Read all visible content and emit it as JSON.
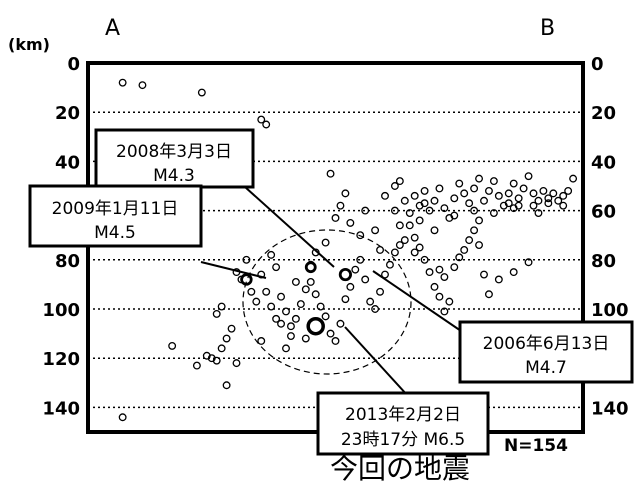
{
  "chart_data": {
    "type": "scatter",
    "title": "",
    "xlabel": "",
    "ylabel": "(km)",
    "y_unit": "(km)",
    "endpoint_left": "A",
    "endpoint_right": "B",
    "ylim": [
      0,
      150
    ],
    "y_inverted": true,
    "yticks": [
      "0",
      "20",
      "40",
      "60",
      "80",
      "100",
      "120",
      "140"
    ],
    "grid": "horizontal dotted",
    "count_label": "N=154",
    "caption": "今回の地震",
    "points": [
      {
        "x": 0.07,
        "y": 8
      },
      {
        "x": 0.11,
        "y": 9
      },
      {
        "x": 0.23,
        "y": 12
      },
      {
        "x": 0.35,
        "y": 23
      },
      {
        "x": 0.36,
        "y": 25
      },
      {
        "x": 0.07,
        "y": 144
      },
      {
        "x": 0.17,
        "y": 115
      },
      {
        "x": 0.22,
        "y": 123
      },
      {
        "x": 0.24,
        "y": 119
      },
      {
        "x": 0.25,
        "y": 120
      },
      {
        "x": 0.26,
        "y": 121
      },
      {
        "x": 0.27,
        "y": 116
      },
      {
        "x": 0.28,
        "y": 112
      },
      {
        "x": 0.29,
        "y": 108
      },
      {
        "x": 0.26,
        "y": 102
      },
      {
        "x": 0.28,
        "y": 131
      },
      {
        "x": 0.3,
        "y": 122
      },
      {
        "x": 0.27,
        "y": 99
      },
      {
        "x": 0.3,
        "y": 85
      },
      {
        "x": 0.31,
        "y": 88
      },
      {
        "x": 0.32,
        "y": 80
      },
      {
        "x": 0.35,
        "y": 86
      },
      {
        "x": 0.36,
        "y": 93
      },
      {
        "x": 0.37,
        "y": 78
      },
      {
        "x": 0.38,
        "y": 83
      },
      {
        "x": 0.39,
        "y": 95
      },
      {
        "x": 0.4,
        "y": 101
      },
      {
        "x": 0.41,
        "y": 107
      },
      {
        "x": 0.42,
        "y": 104
      },
      {
        "x": 0.43,
        "y": 98
      },
      {
        "x": 0.44,
        "y": 92
      },
      {
        "x": 0.45,
        "y": 89
      },
      {
        "x": 0.46,
        "y": 94
      },
      {
        "x": 0.47,
        "y": 99
      },
      {
        "x": 0.48,
        "y": 103
      },
      {
        "x": 0.49,
        "y": 110
      },
      {
        "x": 0.5,
        "y": 113
      },
      {
        "x": 0.51,
        "y": 106
      },
      {
        "x": 0.52,
        "y": 96
      },
      {
        "x": 0.53,
        "y": 91
      },
      {
        "x": 0.54,
        "y": 84
      },
      {
        "x": 0.55,
        "y": 80
      },
      {
        "x": 0.56,
        "y": 88
      },
      {
        "x": 0.57,
        "y": 97
      },
      {
        "x": 0.58,
        "y": 100
      },
      {
        "x": 0.59,
        "y": 93
      },
      {
        "x": 0.6,
        "y": 86
      },
      {
        "x": 0.61,
        "y": 82
      },
      {
        "x": 0.62,
        "y": 77
      },
      {
        "x": 0.46,
        "y": 77
      },
      {
        "x": 0.48,
        "y": 73
      },
      {
        "x": 0.5,
        "y": 63
      },
      {
        "x": 0.53,
        "y": 65
      },
      {
        "x": 0.55,
        "y": 70
      },
      {
        "x": 0.58,
        "y": 68
      },
      {
        "x": 0.38,
        "y": 104
      },
      {
        "x": 0.39,
        "y": 106
      },
      {
        "x": 0.41,
        "y": 111
      },
      {
        "x": 0.44,
        "y": 112
      },
      {
        "x": 0.35,
        "y": 113
      },
      {
        "x": 0.37,
        "y": 99
      },
      {
        "x": 0.33,
        "y": 93
      },
      {
        "x": 0.34,
        "y": 97
      },
      {
        "x": 0.49,
        "y": 45
      },
      {
        "x": 0.51,
        "y": 58
      },
      {
        "x": 0.52,
        "y": 53
      },
      {
        "x": 0.56,
        "y": 60
      },
      {
        "x": 0.6,
        "y": 54
      },
      {
        "x": 0.62,
        "y": 60
      },
      {
        "x": 0.63,
        "y": 66
      },
      {
        "x": 0.64,
        "y": 72
      },
      {
        "x": 0.65,
        "y": 66
      },
      {
        "x": 0.66,
        "y": 71
      },
      {
        "x": 0.67,
        "y": 75
      },
      {
        "x": 0.68,
        "y": 80
      },
      {
        "x": 0.69,
        "y": 85
      },
      {
        "x": 0.7,
        "y": 91
      },
      {
        "x": 0.71,
        "y": 95
      },
      {
        "x": 0.72,
        "y": 101
      },
      {
        "x": 0.73,
        "y": 97
      },
      {
        "x": 0.71,
        "y": 84
      },
      {
        "x": 0.72,
        "y": 87
      },
      {
        "x": 0.74,
        "y": 83
      },
      {
        "x": 0.75,
        "y": 79
      },
      {
        "x": 0.76,
        "y": 76
      },
      {
        "x": 0.77,
        "y": 72
      },
      {
        "x": 0.78,
        "y": 68
      },
      {
        "x": 0.79,
        "y": 74
      },
      {
        "x": 0.8,
        "y": 86
      },
      {
        "x": 0.81,
        "y": 94
      },
      {
        "x": 0.83,
        "y": 88
      },
      {
        "x": 0.86,
        "y": 85
      },
      {
        "x": 0.89,
        "y": 81
      },
      {
        "x": 0.66,
        "y": 54
      },
      {
        "x": 0.67,
        "y": 58
      },
      {
        "x": 0.68,
        "y": 57
      },
      {
        "x": 0.69,
        "y": 60
      },
      {
        "x": 0.7,
        "y": 56
      },
      {
        "x": 0.71,
        "y": 51
      },
      {
        "x": 0.72,
        "y": 59
      },
      {
        "x": 0.73,
        "y": 63
      },
      {
        "x": 0.74,
        "y": 55
      },
      {
        "x": 0.75,
        "y": 49
      },
      {
        "x": 0.76,
        "y": 53
      },
      {
        "x": 0.77,
        "y": 57
      },
      {
        "x": 0.78,
        "y": 51
      },
      {
        "x": 0.79,
        "y": 47
      },
      {
        "x": 0.8,
        "y": 56
      },
      {
        "x": 0.81,
        "y": 52
      },
      {
        "x": 0.82,
        "y": 48
      },
      {
        "x": 0.83,
        "y": 54
      },
      {
        "x": 0.84,
        "y": 58
      },
      {
        "x": 0.85,
        "y": 53
      },
      {
        "x": 0.86,
        "y": 49
      },
      {
        "x": 0.87,
        "y": 55
      },
      {
        "x": 0.88,
        "y": 51
      },
      {
        "x": 0.89,
        "y": 46
      },
      {
        "x": 0.9,
        "y": 53
      },
      {
        "x": 0.91,
        "y": 56
      },
      {
        "x": 0.92,
        "y": 52
      },
      {
        "x": 0.93,
        "y": 55
      },
      {
        "x": 0.94,
        "y": 53
      },
      {
        "x": 0.95,
        "y": 56
      },
      {
        "x": 0.96,
        "y": 54
      },
      {
        "x": 0.97,
        "y": 52
      },
      {
        "x": 0.98,
        "y": 47
      },
      {
        "x": 0.62,
        "y": 50
      },
      {
        "x": 0.63,
        "y": 48
      },
      {
        "x": 0.64,
        "y": 56
      },
      {
        "x": 0.65,
        "y": 61
      },
      {
        "x": 0.67,
        "y": 64
      },
      {
        "x": 0.7,
        "y": 68
      },
      {
        "x": 0.74,
        "y": 62
      },
      {
        "x": 0.79,
        "y": 64
      },
      {
        "x": 0.82,
        "y": 61
      },
      {
        "x": 0.86,
        "y": 59
      },
      {
        "x": 0.9,
        "y": 58
      },
      {
        "x": 0.93,
        "y": 57
      },
      {
        "x": 0.96,
        "y": 58
      },
      {
        "x": 0.68,
        "y": 52
      },
      {
        "x": 0.85,
        "y": 57
      },
      {
        "x": 0.78,
        "y": 60
      },
      {
        "x": 0.87,
        "y": 58
      },
      {
        "x": 0.91,
        "y": 61
      },
      {
        "x": 0.63,
        "y": 74
      },
      {
        "x": 0.59,
        "y": 76
      },
      {
        "x": 0.66,
        "y": 77
      },
      {
        "x": 0.42,
        "y": 89
      },
      {
        "x": 0.45,
        "y": 82
      },
      {
        "x": 0.4,
        "y": 116
      }
    ],
    "highlighted_events": [
      {
        "name": "2008年3月3日",
        "magnitude": "M4.3",
        "x": 0.45,
        "y": 83
      },
      {
        "name": "2009年1月11日",
        "magnitude": "M4.5",
        "x": 0.32,
        "y": 88
      },
      {
        "name": "2006年6月13日",
        "magnitude": "M4.7",
        "x": 0.52,
        "y": 86
      },
      {
        "name": "2013年2月2日",
        "magnitude": "23時17分 M6.5",
        "x": 0.46,
        "y": 107
      }
    ],
    "annotations": [
      {
        "lines": [
          "2008年3月3日",
          "M4.3"
        ]
      },
      {
        "lines": [
          "2009年1月11日",
          "M4.5"
        ]
      },
      {
        "lines": [
          "2006年6月13日",
          "M4.7"
        ]
      },
      {
        "lines": [
          "2013年2月2日",
          "23時17分 M6.5"
        ]
      }
    ]
  }
}
